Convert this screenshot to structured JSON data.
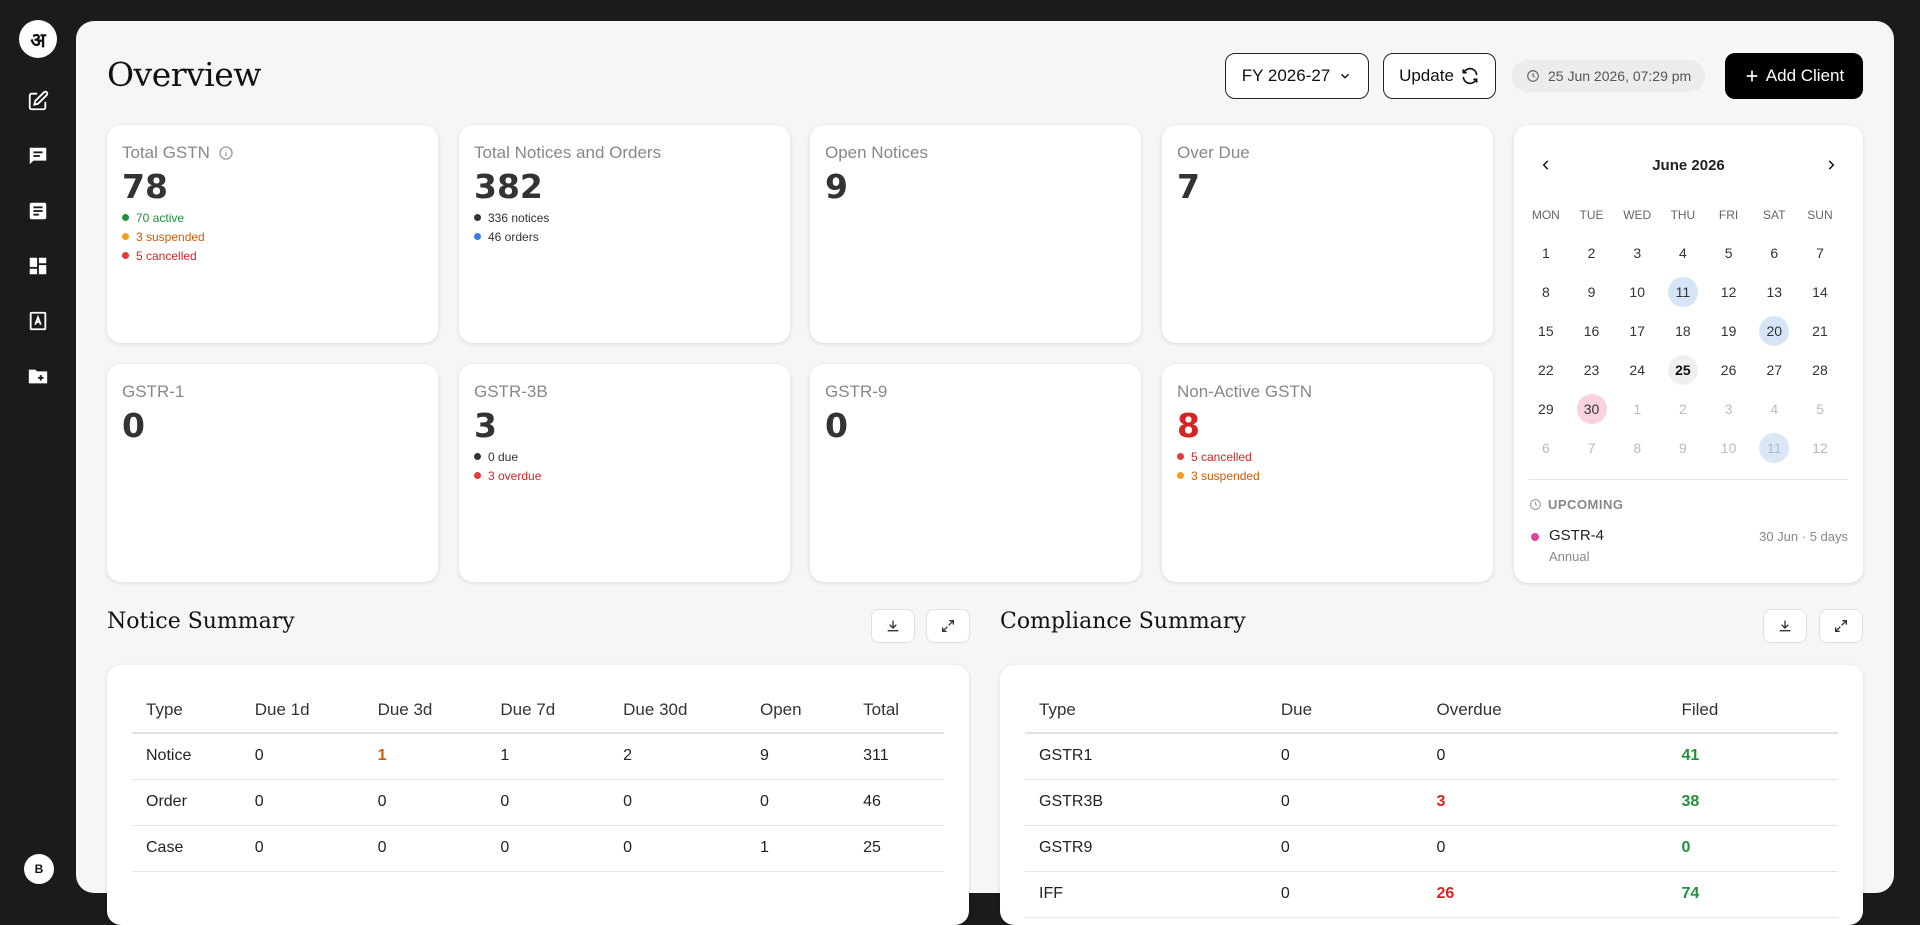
{
  "brand": {
    "logo_glyph": "अ"
  },
  "sidebar": {
    "items": [
      {
        "icon": "edit-icon"
      },
      {
        "icon": "chat-icon"
      },
      {
        "icon": "document-icon"
      },
      {
        "icon": "dashboard-icon"
      },
      {
        "icon": "contacts-book-icon"
      },
      {
        "icon": "folder-add-icon"
      }
    ],
    "avatar_initial": "B"
  },
  "header": {
    "title": "Overview",
    "fy_label": "FY 2026-27",
    "update_label": "Update",
    "timestamp": "25 Jun 2026, 07:29 pm",
    "add_client_label": "Add Client"
  },
  "cards": {
    "total_gstn": {
      "label": "Total GSTN",
      "value": "78",
      "active": "70 active",
      "suspended": "3 suspended",
      "cancelled": "5 cancelled"
    },
    "notices_orders": {
      "label": "Total Notices and Orders",
      "value": "382",
      "notices": "336 notices",
      "orders": "46 orders"
    },
    "open_notices": {
      "label": "Open Notices",
      "value": "9"
    },
    "over_due": {
      "label": "Over Due",
      "value": "7"
    },
    "gstr1": {
      "label": "GSTR-1",
      "value": "0"
    },
    "gstr3b": {
      "label": "GSTR-3B",
      "value": "3",
      "due": "0 due",
      "overdue": "3 overdue"
    },
    "gstr9": {
      "label": "GSTR-9",
      "value": "0"
    },
    "non_active": {
      "label": "Non-Active GSTN",
      "value": "8",
      "cancelled": "5 cancelled",
      "suspended": "3 suspended"
    }
  },
  "calendar": {
    "month": "June 2026",
    "weekdays": [
      "MON",
      "TUE",
      "WED",
      "THU",
      "FRI",
      "SAT",
      "SUN"
    ],
    "weeks": [
      [
        "1",
        "2",
        "3",
        "4",
        "5",
        "6",
        "7"
      ],
      [
        "8",
        "9",
        "10",
        "11",
        "12",
        "13",
        "14"
      ],
      [
        "15",
        "16",
        "17",
        "18",
        "19",
        "20",
        "21"
      ],
      [
        "22",
        "23",
        "24",
        "25",
        "26",
        "27",
        "28"
      ],
      [
        "29",
        "30",
        "1",
        "2",
        "3",
        "4",
        "5"
      ],
      [
        "6",
        "7",
        "8",
        "9",
        "10",
        "11",
        "12"
      ]
    ],
    "upcoming_label": "UPCOMING",
    "upcoming": {
      "name": "GSTR-4",
      "sub": "Annual",
      "date": "30 Jun · 5 days"
    }
  },
  "notice_summary": {
    "title": "Notice Summary",
    "headers": [
      "Type",
      "Due 1d",
      "Due 3d",
      "Due 7d",
      "Due 30d",
      "Open",
      "Total"
    ],
    "rows": [
      [
        "Notice",
        "0",
        "1",
        "1",
        "2",
        "9",
        "311"
      ],
      [
        "Order",
        "0",
        "0",
        "0",
        "0",
        "0",
        "46"
      ],
      [
        "Case",
        "0",
        "0",
        "0",
        "0",
        "1",
        "25"
      ]
    ]
  },
  "compliance_summary": {
    "title": "Compliance Summary",
    "headers": [
      "Type",
      "Due",
      "Overdue",
      "Filed"
    ],
    "rows": [
      [
        "GSTR1",
        "0",
        "0",
        "41"
      ],
      [
        "GSTR3B",
        "0",
        "3",
        "38"
      ],
      [
        "GSTR9",
        "0",
        "0",
        "0"
      ],
      [
        "IFF",
        "0",
        "26",
        "74"
      ]
    ]
  },
  "colors": {
    "green": "#21913c",
    "orange": "#d35a00",
    "red": "#d62424",
    "blue": "#3b7be0",
    "pink": "#e0459b",
    "dark": "#333333"
  }
}
